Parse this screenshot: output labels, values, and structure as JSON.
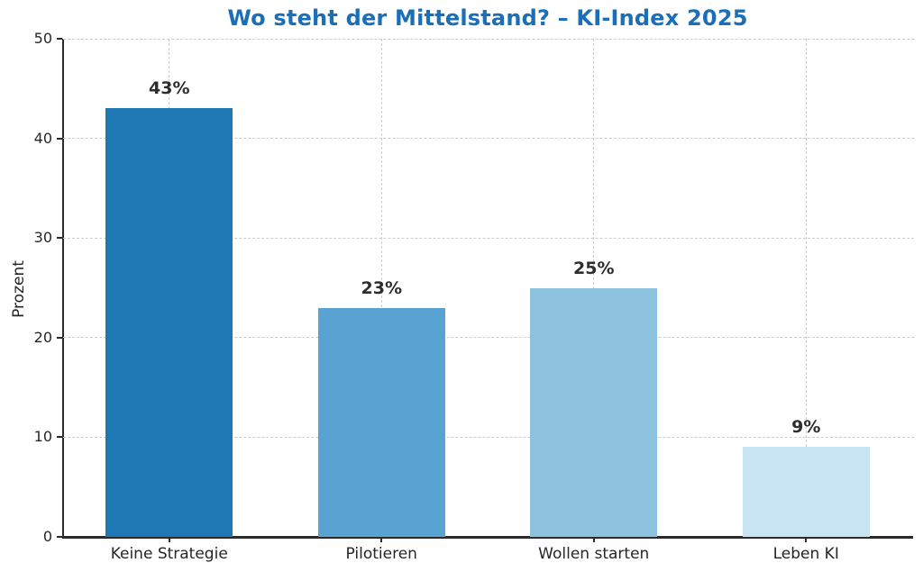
{
  "chart_data": {
    "type": "bar",
    "title": "Wo steht der Mittelstand? – KI-Index 2025",
    "title_color": "#1a6fb8",
    "ylabel": "Prozent",
    "xlabel": "",
    "categories": [
      "Keine Strategie",
      "Pilotieren",
      "Wollen starten",
      "Leben KI"
    ],
    "values": [
      43,
      23,
      25,
      9
    ],
    "value_labels": [
      "43%",
      "23%",
      "25%",
      "9%"
    ],
    "bar_colors": [
      "#1f77b4",
      "#58a3d1",
      "#8dc2de",
      "#c8e3f2"
    ],
    "ylim": [
      0,
      50
    ],
    "yticks": [
      0,
      10,
      20,
      30,
      40,
      50
    ],
    "grid": {
      "horizontal": true,
      "vertical": true,
      "style": "dashed",
      "color": "#cccccc"
    },
    "axis_color": "#2b2b2b",
    "tick_label_color": "#262626",
    "value_label_color": "#2d2d2d",
    "background_color": "#ffffff",
    "legend": null
  }
}
